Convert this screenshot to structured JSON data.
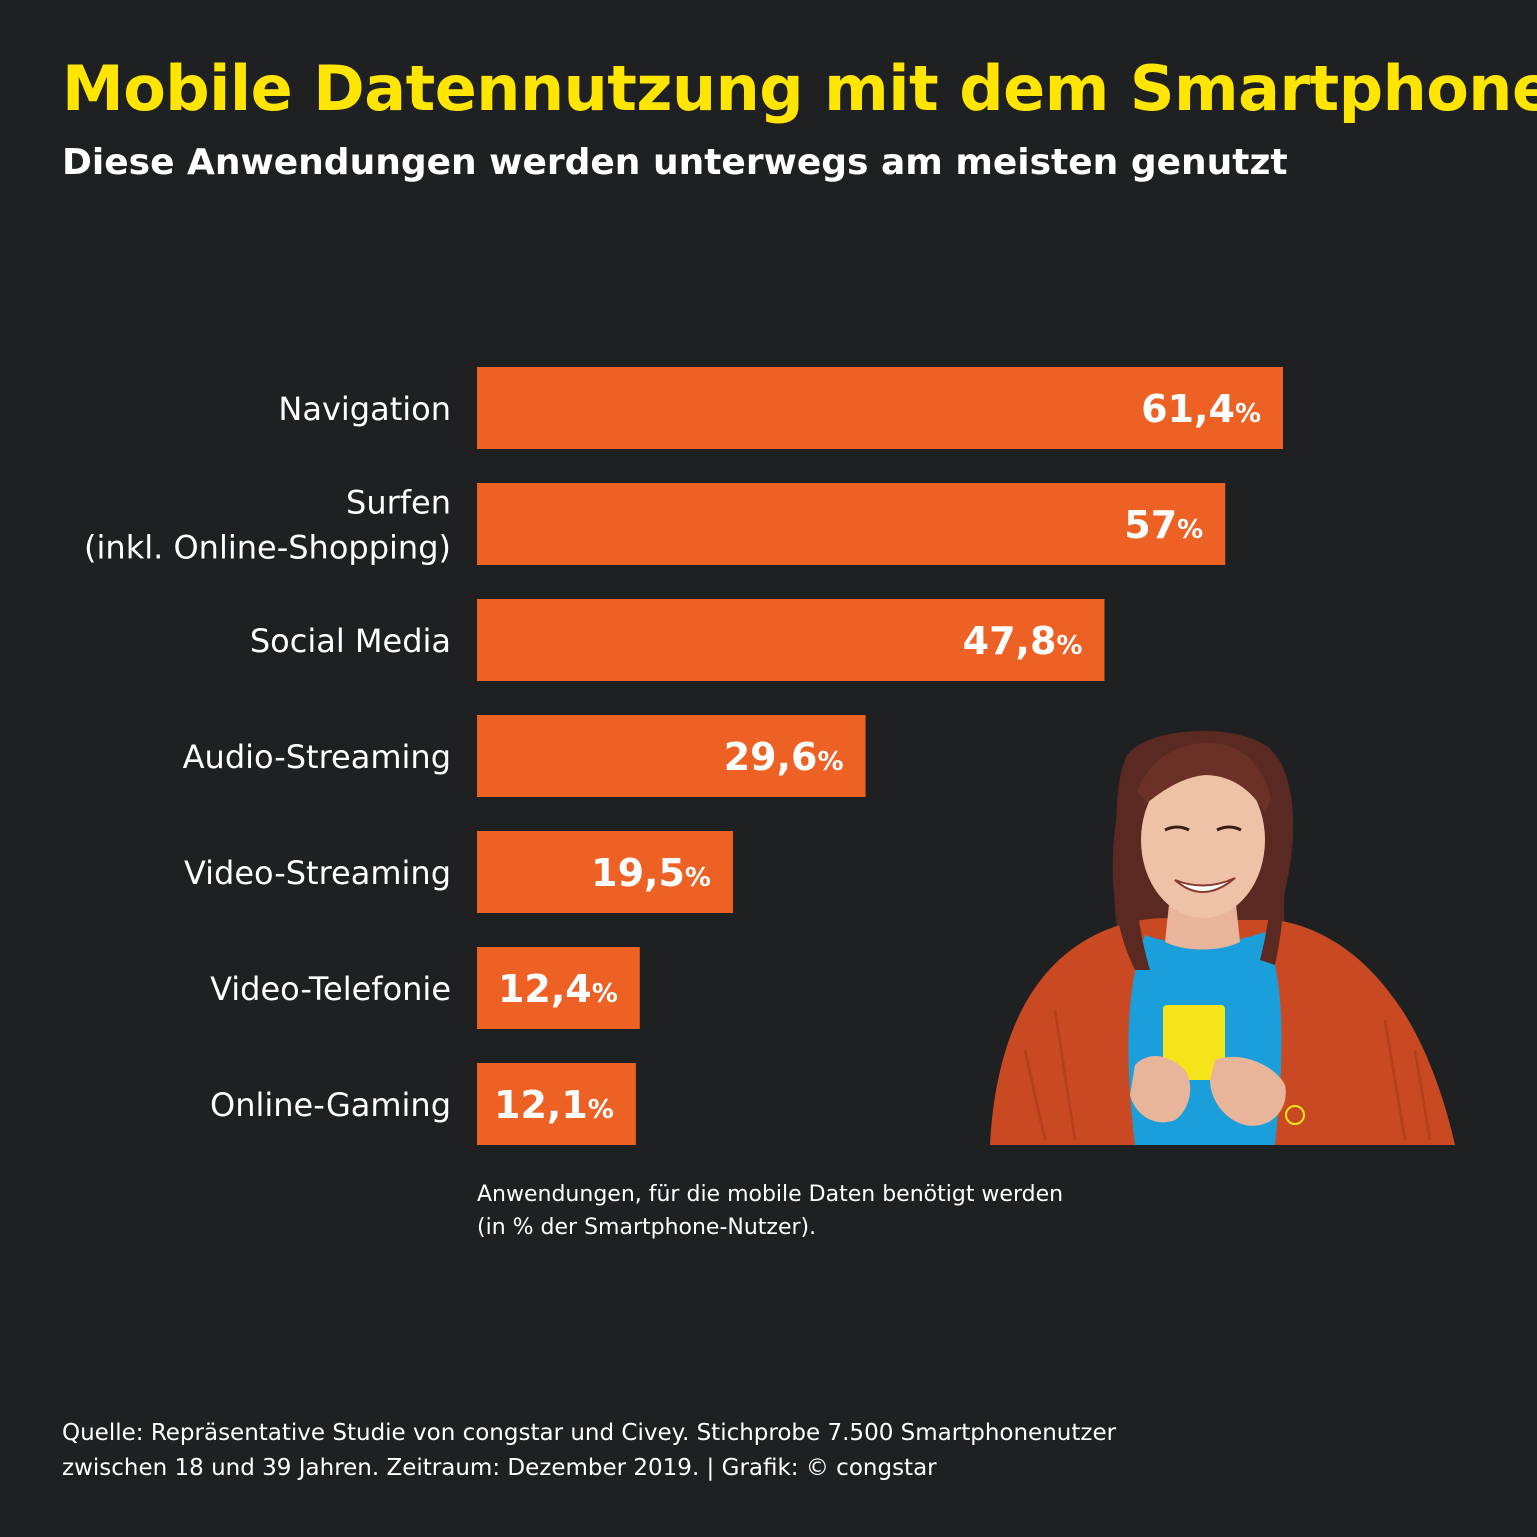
{
  "header": {
    "title": "Mobile Datennutzung mit dem Smartphone",
    "subtitle": "Diese Anwendungen werden unterwegs am meisten genutzt"
  },
  "chart_data": {
    "type": "bar",
    "orientation": "horizontal",
    "categories": [
      [
        "Navigation"
      ],
      [
        "Surfen",
        "(inkl. Online-Shopping)"
      ],
      [
        "Social Media"
      ],
      [
        "Audio-Streaming"
      ],
      [
        "Video-Streaming"
      ],
      [
        "Video-Telefonie"
      ],
      [
        "Online-Gaming"
      ]
    ],
    "values": [
      61.4,
      57,
      47.8,
      29.6,
      19.5,
      12.4,
      12.1
    ],
    "value_labels": [
      "61,4",
      "57",
      "47,8",
      "29,6",
      "19,5",
      "12,4",
      "12,1"
    ],
    "unit": "%",
    "xlim": [
      0,
      61.4
    ],
    "grid": false,
    "legend": "none",
    "caption": [
      "Anwendungen, für die mobile Daten benötigt werden",
      "(in % der Smartphone-Nutzer)."
    ]
  },
  "footer": {
    "source_lines": [
      "Quelle: Repräsentative Studie von congstar und Civey. Stichprobe 7.500 Smartphonenutzer",
      "zwischen 18 und 39 Jahren. Zeitraum: Dezember 2019. |  Grafik: © congstar"
    ]
  },
  "colors": {
    "background": "#1e2022",
    "bar": "#ee6124",
    "title": "#ffe500",
    "text": "#ffffff",
    "sweater": "#c94a22",
    "shirt": "#1b9fdb",
    "phone": "#f5e41a"
  },
  "illustration": "woman-with-smartphone"
}
